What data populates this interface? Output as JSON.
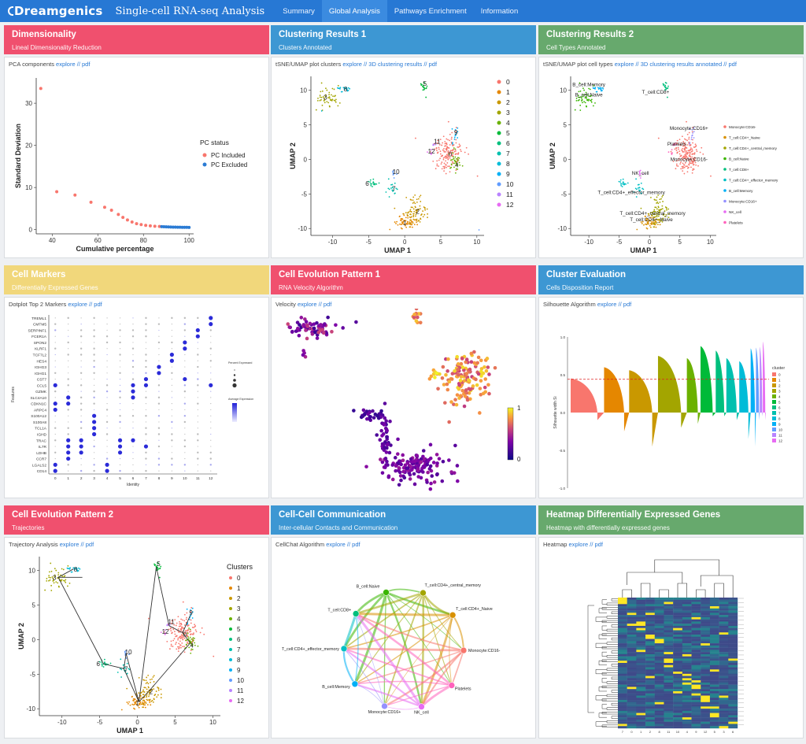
{
  "nav": {
    "brand": "Dreamgenics",
    "title": "Single-cell RNA-seq Analysis",
    "items": [
      "Summary",
      "Global Analysis",
      "Pathways Enrichment",
      "Information"
    ],
    "active": "Global Analysis"
  },
  "links": {
    "explore": "explore",
    "pdf": "pdf",
    "sep": "//"
  },
  "panels": {
    "dim": {
      "title": "Dimensionality",
      "subtitle": "Lineal Dimensionality Reduction",
      "caption": "PCA components",
      "color": "#f0506e"
    },
    "clus1": {
      "title": "Clustering Results 1",
      "subtitle": "Clusters Annotated",
      "caption": "tSNE/UMAP plot clusters",
      "extra": "3D clustering results",
      "color": "#3d97d3"
    },
    "clus2": {
      "title": "Clustering Results 2",
      "subtitle": "Cell Types Annotated",
      "caption": "tSNE/UMAP plot cell types",
      "extra": "3D clustering results annotated",
      "color": "#67a96d"
    },
    "markers": {
      "title": "Cell Markers",
      "subtitle": "Differentially Expressed Genes",
      "caption": "Dotplot Top 2 Markers",
      "color": "#f1d77b"
    },
    "evo1": {
      "title": "Cell Evolution Pattern 1",
      "subtitle": "RNA Velocity Algorithm",
      "caption": "Velocity",
      "color": "#f0506e"
    },
    "eval": {
      "title": "Cluster Evaluation",
      "subtitle": "Cells Disposition Report",
      "caption": "Silhouette Algorithm",
      "color": "#3d97d3"
    },
    "evo2": {
      "title": "Cell Evolution Pattern 2",
      "subtitle": "Trajectories",
      "caption": "Trajectory Analysis",
      "color": "#f0506e"
    },
    "comm": {
      "title": "Cell-Cell Communication",
      "subtitle": "Inter-cellular Contacts and Communication",
      "caption": "CellChat Algorithm",
      "color": "#3d97d3"
    },
    "heat": {
      "title": "Heatmap Differentially Expressed Genes",
      "subtitle": "Heatmap with differentially expressed genes",
      "caption": "Heatmap",
      "color": "#67a96d"
    }
  },
  "cluster_colors": [
    "#f8766d",
    "#e58700",
    "#c99800",
    "#a3a500",
    "#6bb100",
    "#00ba38",
    "#00bf7d",
    "#00c0af",
    "#00bcd8",
    "#00b0f6",
    "#619cff",
    "#b983ff",
    "#e76bf3"
  ],
  "chart_data": [
    {
      "id": "pca",
      "type": "scatter",
      "xlabel": "Cumulative percentage",
      "ylabel": "Standard Deviation",
      "xlim": [
        35,
        100
      ],
      "ylim": [
        0,
        35
      ],
      "xticks": [
        40,
        60,
        80,
        100
      ],
      "yticks": [
        0,
        10,
        20,
        30
      ],
      "legend_title": "PC status",
      "series": [
        {
          "name": "PC Included",
          "color": "#f8766d",
          "x": [
            35,
            42,
            50,
            57,
            63,
            66,
            69,
            71,
            73,
            75,
            77,
            79,
            81,
            83,
            85,
            87
          ],
          "y": [
            33.5,
            9,
            8.2,
            6.5,
            5.3,
            4.6,
            3.6,
            2.9,
            2.3,
            1.8,
            1.4,
            1.2,
            1.0,
            0.9,
            0.8,
            0.75
          ]
        },
        {
          "name": "PC Excluded",
          "color": "#2b7bd4",
          "x": [
            88,
            89,
            90,
            91,
            92,
            93,
            94,
            95,
            96,
            97,
            98,
            99,
            100
          ],
          "y": [
            0.7,
            0.68,
            0.66,
            0.64,
            0.62,
            0.6,
            0.58,
            0.57,
            0.56,
            0.55,
            0.54,
            0.53,
            0.52
          ]
        }
      ]
    },
    {
      "id": "umap_clusters",
      "type": "scatter",
      "xlabel": "UMAP 1",
      "ylabel": "UMAP 2",
      "xlim": [
        -13,
        11
      ],
      "ylim": [
        -11,
        12
      ],
      "xticks": [
        -10,
        -5,
        0,
        5,
        10
      ],
      "yticks": [
        -10,
        -5,
        0,
        5,
        10
      ],
      "legend_labels": [
        "0",
        "1",
        "2",
        "3",
        "4",
        "5",
        "6",
        "7",
        "8",
        "9",
        "10",
        "11",
        "12"
      ],
      "clusters": [
        {
          "id": 0,
          "cx": 6,
          "cy": 1,
          "sx": 1.1,
          "sy": 1.4,
          "n": 160
        },
        {
          "id": 1,
          "cx": 0.2,
          "cy": -9,
          "sx": 0.9,
          "sy": 0.5,
          "n": 60
        },
        {
          "id": 2,
          "cx": 1.5,
          "cy": -7.5,
          "sx": 0.8,
          "sy": 1.0,
          "n": 80
        },
        {
          "id": 3,
          "cx": -10.5,
          "cy": 9,
          "sx": 0.8,
          "sy": 0.8,
          "n": 50
        },
        {
          "id": 4,
          "cx": 7,
          "cy": -0.5,
          "sx": 0.5,
          "sy": 0.8,
          "n": 35
        },
        {
          "id": 5,
          "cx": 2.5,
          "cy": 10.5,
          "sx": 0.3,
          "sy": 0.4,
          "n": 18
        },
        {
          "id": 6,
          "cx": -4.5,
          "cy": -3.5,
          "sx": 0.5,
          "sy": 0.3,
          "n": 16
        },
        {
          "id": 7,
          "cx": -1.8,
          "cy": -4.2,
          "sx": 0.4,
          "sy": 0.6,
          "n": 18
        },
        {
          "id": 8,
          "cx": -8.5,
          "cy": 10.2,
          "sx": 0.5,
          "sy": 0.3,
          "n": 20
        },
        {
          "id": 9,
          "cx": 7,
          "cy": 3.5,
          "sx": 0.3,
          "sy": 0.5,
          "n": 12
        },
        {
          "id": 10,
          "cx": -1.5,
          "cy": -2,
          "sx": 0.2,
          "sy": 0.3,
          "n": 8
        },
        {
          "id": 11,
          "cx": 4.2,
          "cy": 2,
          "sx": 0.2,
          "sy": 0.2,
          "n": 5
        },
        {
          "id": 12,
          "cx": 3.5,
          "cy": 1,
          "sx": 0.2,
          "sy": 0.2,
          "n": 5
        }
      ],
      "point_labels": [
        {
          "text": "0",
          "x": 6.3,
          "y": 0.8
        },
        {
          "text": "1",
          "x": 0.0,
          "y": -9.2
        },
        {
          "text": "2",
          "x": 1.8,
          "y": -7.5
        },
        {
          "text": "3",
          "x": -11,
          "y": 9
        },
        {
          "text": "4",
          "x": 7.2,
          "y": -0.8
        },
        {
          "text": "5",
          "x": 2.8,
          "y": 11
        },
        {
          "text": "6",
          "x": -5.2,
          "y": -3.5
        },
        {
          "text": "7",
          "x": -1.5,
          "y": -4.2
        },
        {
          "text": "8",
          "x": -8.2,
          "y": 10.2
        },
        {
          "text": "9",
          "x": 7.1,
          "y": 3.9
        },
        {
          "text": "10",
          "x": -1.2,
          "y": -1.8
        },
        {
          "text": "11",
          "x": 4.5,
          "y": 2.6
        },
        {
          "text": "12",
          "x": 3.7,
          "y": 1.2
        }
      ]
    },
    {
      "id": "umap_celltypes",
      "type": "scatter",
      "xlabel": "UMAP 1",
      "ylabel": "UMAP 2",
      "xlim": [
        -13,
        11
      ],
      "ylim": [
        -11,
        12
      ],
      "xticks": [
        -10,
        -5,
        0,
        5,
        10
      ],
      "yticks": [
        -10,
        -5,
        0,
        5,
        10
      ],
      "legend_labels": [
        "Monocyte:CD16-",
        "T_cell:CD4+_Naive",
        "T_cell:CD4+_central_memory",
        "B_cell:Naive",
        "T_cell:CD8+",
        "T_cell:CD4+_effector_memory",
        "B_cell:Memory",
        "Monocyte:CD16+",
        "NK_cell",
        "Platelets"
      ],
      "legend_colors": [
        "#f8766d",
        "#d89000",
        "#a3a500",
        "#39b600",
        "#00bf7d",
        "#00bfc4",
        "#00b0f6",
        "#9590ff",
        "#e76bf3",
        "#ff62bc"
      ],
      "point_labels": [
        {
          "text": "B_cell:Memory",
          "x": -10,
          "y": 10.8
        },
        {
          "text": "B_cell:Naive",
          "x": -10,
          "y": 9.3
        },
        {
          "text": "T_cell:CD8+",
          "x": 1.0,
          "y": 9.7
        },
        {
          "text": "Monocyte:CD16+",
          "x": 6.5,
          "y": 4.5
        },
        {
          "text": "Platelets",
          "x": 4.5,
          "y": 2.2
        },
        {
          "text": "Monocyte:CD16-",
          "x": 6.5,
          "y": 0
        },
        {
          "text": "NK_cell",
          "x": -1.5,
          "y": -2
        },
        {
          "text": "T_cell:CD4+_effector_memory",
          "x": -3,
          "y": -4.8
        },
        {
          "text": "T_cell:CD4+_central_memory",
          "x": 0.5,
          "y": -7.8
        },
        {
          "text": "T_cell:CD4+_Naive",
          "x": 0.3,
          "y": -8.7
        }
      ]
    },
    {
      "id": "dotplot",
      "type": "scatter",
      "xlabel": "Identity",
      "ylabel": "Features",
      "x": [
        "0",
        "1",
        "2",
        "3",
        "4",
        "5",
        "6",
        "7",
        "8",
        "9",
        "10",
        "11",
        "12"
      ],
      "genes": [
        "TREML1",
        "CMTM5",
        "SERPINF1",
        "FCER1A",
        "SPON2",
        "KLRF1",
        "TCF7L2",
        "HES4",
        "IGHG3",
        "IGHG1",
        "CST7",
        "CCL5",
        "GZMK",
        "SLC4A10",
        "CDKN1C",
        "ARPC4",
        "S100A12",
        "S100A8",
        "TCL1A",
        "IGHD",
        "TRAC",
        "IL7R",
        "LDHB",
        "CCR7",
        "LGALS2",
        "CD14"
      ],
      "legend_title_size": "Percent Expressed",
      "legend_title_color": "Average Expression"
    },
    {
      "id": "velocity",
      "type": "scatter",
      "colorbar_ticks": [
        "0",
        "1"
      ]
    },
    {
      "id": "silhouette",
      "type": "bar",
      "ylabel": "Silhouette width Si",
      "yticks": [
        "1.0",
        "0.5",
        "0.0",
        "-0.5",
        "-1.0"
      ],
      "legend_title": "cluster",
      "categories": [
        "0",
        "1",
        "2",
        "3",
        "4",
        "5",
        "6",
        "7",
        "8",
        "9",
        "10",
        "11",
        "12"
      ],
      "max_width": [
        0.45,
        0.6,
        0.56,
        0.75,
        0.72,
        0.88,
        0.82,
        0.72,
        0.68,
        0.85,
        0.86,
        0.87,
        0.94
      ],
      "min_width": [
        -0.1,
        -0.25,
        -0.45,
        -0.2,
        -0.15,
        -0.05,
        -0.05,
        -0.1,
        -0.35,
        -0.45,
        -0.1,
        -0.05,
        -0.1
      ],
      "average": 0.44
    },
    {
      "id": "trajectory",
      "type": "scatter",
      "xlabel": "UMAP 1",
      "ylabel": "UMAP 2",
      "xticks": [
        -10,
        -5,
        0,
        5,
        10
      ],
      "yticks": [
        -10,
        -5,
        0,
        5,
        10
      ],
      "legend_title": "Clusters",
      "legend_labels": [
        "0",
        "1",
        "2",
        "3",
        "4",
        "5",
        "6",
        "7",
        "8",
        "9",
        "10",
        "11",
        "12"
      ]
    },
    {
      "id": "cellchat",
      "type": "other",
      "nodes": [
        "B_cell:Naive",
        "T_cell:CD4+_central_memory",
        "T_cell:CD4+_Naive",
        "Monocyte:CD16-",
        "Platelets",
        "NK_cell",
        "Monocyte:CD16+",
        "B_cell:Memory",
        "T_cell:CD4+_effector_memory",
        "T_cell:CD8+"
      ]
    },
    {
      "id": "heatmap",
      "type": "heatmap",
      "x": [
        "7",
        "0",
        "1",
        "2",
        "8",
        "11",
        "10",
        "4",
        "9",
        "12",
        "5",
        "3",
        "6"
      ]
    }
  ]
}
